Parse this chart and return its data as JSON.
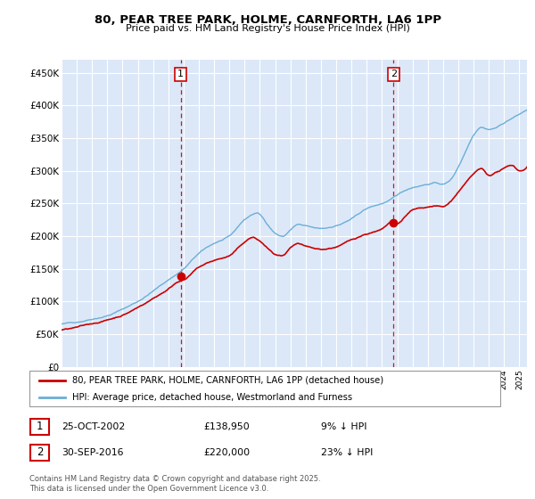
{
  "title": "80, PEAR TREE PARK, HOLME, CARNFORTH, LA6 1PP",
  "subtitle": "Price paid vs. HM Land Registry's House Price Index (HPI)",
  "ylabel_ticks": [
    "£0",
    "£50K",
    "£100K",
    "£150K",
    "£200K",
    "£250K",
    "£300K",
    "£350K",
    "£400K",
    "£450K"
  ],
  "ytick_values": [
    0,
    50000,
    100000,
    150000,
    200000,
    250000,
    300000,
    350000,
    400000,
    450000
  ],
  "ylim": [
    0,
    470000
  ],
  "hpi_color": "#6baed6",
  "price_color": "#cc0000",
  "dashed_color": "#cc0000",
  "legend_label_price": "80, PEAR TREE PARK, HOLME, CARNFORTH, LA6 1PP (detached house)",
  "legend_label_hpi": "HPI: Average price, detached house, Westmorland and Furness",
  "annotation1_date": "25-OCT-2002",
  "annotation1_price": "£138,950",
  "annotation1_pct": "9% ↓ HPI",
  "annotation2_date": "30-SEP-2016",
  "annotation2_price": "£220,000",
  "annotation2_pct": "23% ↓ HPI",
  "footer": "Contains HM Land Registry data © Crown copyright and database right 2025.\nThis data is licensed under the Open Government Licence v3.0.",
  "purchase1_year": 2002.81,
  "purchase1_price": 138950,
  "purchase2_year": 2016.75,
  "purchase2_price": 220000,
  "background_color": "#dce8f8",
  "grid_color": "#ffffff",
  "xstart": 1995,
  "xend": 2025.5
}
